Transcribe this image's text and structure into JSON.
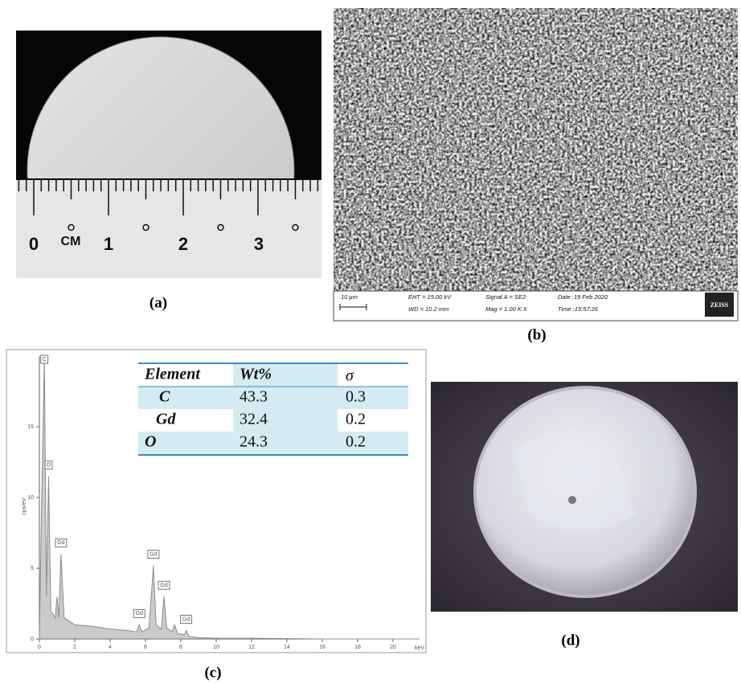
{
  "panels": {
    "a": {
      "label": "(a)",
      "ruler": {
        "unit": "CM",
        "numbers": [
          "0",
          "1",
          "2",
          "3"
        ]
      }
    },
    "b": {
      "label": "(b)",
      "info_bar": {
        "scale": "10 µm",
        "eht": "EHT = 15.00 kV",
        "wd": "WD = 10.2 mm",
        "signal": "Signal A = SE2",
        "mag": "Mag =  1.00 K X",
        "date": "Date :19 Feb 2020",
        "time": "Time :15:57:26",
        "logo": "ZEISS"
      }
    },
    "c": {
      "label": "(c)",
      "spectrum": {
        "xlabel": "keV",
        "ylabel": "cps/eV",
        "color": "#8c8c8c",
        "xlim": [
          0,
          21.5
        ],
        "ylim": [
          0,
          20
        ],
        "xticks": [
          0,
          2,
          4,
          6,
          8,
          10,
          12,
          14,
          16,
          18,
          20
        ],
        "yticks": [
          0,
          5,
          10,
          15
        ],
        "x": [
          0,
          0.1,
          0.28,
          0.4,
          0.52,
          0.65,
          0.9,
          1.0,
          1.1,
          1.22,
          1.4,
          2,
          3,
          4,
          5,
          5.5,
          5.65,
          5.8,
          6.2,
          6.45,
          6.6,
          6.9,
          7.05,
          7.2,
          7.5,
          7.65,
          7.8,
          8.2,
          8.3,
          8.45,
          9,
          10,
          12,
          16,
          20,
          21.5
        ],
        "values": [
          0,
          7.6,
          20,
          3,
          11.5,
          2,
          1.5,
          3,
          1.5,
          6,
          1.5,
          1.0,
          0.9,
          0.7,
          0.6,
          0.5,
          1.0,
          0.5,
          0.8,
          5.2,
          1.0,
          0.7,
          3.0,
          0.8,
          0.5,
          1.0,
          0.4,
          0.3,
          0.6,
          0.2,
          0.1,
          0.05,
          0.05,
          0,
          0,
          0
        ],
        "peaks": [
          {
            "label": "C",
            "x": 0.28,
            "y": 20
          },
          {
            "label": "O",
            "x": 0.52,
            "y": 11.5
          },
          {
            "label": "Gd",
            "x": 1.22,
            "y": 6
          },
          {
            "label": "Gd",
            "x": 5.65,
            "y": 1.0
          },
          {
            "label": "Gd",
            "x": 6.45,
            "y": 5.2
          },
          {
            "label": "Gd",
            "x": 7.05,
            "y": 3.0
          },
          {
            "label": "Gd",
            "x": 8.3,
            "y": 0.6
          }
        ]
      },
      "table": {
        "header": [
          "Element",
          "Wt%",
          "σ"
        ],
        "rows": [
          [
            "C",
            43.3,
            0.3
          ],
          [
            "Gd",
            32.4,
            0.2
          ],
          [
            "O",
            24.3,
            0.2
          ]
        ]
      }
    },
    "d": {
      "label": "(d)"
    }
  }
}
